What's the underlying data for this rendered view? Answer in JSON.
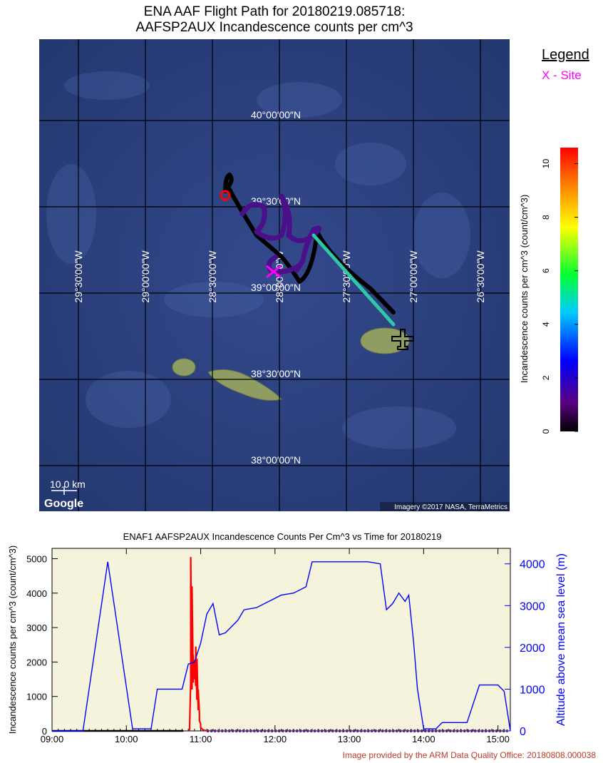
{
  "map": {
    "title_line1": "ENA AAF Flight Path for 20180219.085718:",
    "title_line2": "AAFSP2AUX Incandescence counts per cm^3",
    "legend_heading": "Legend",
    "legend_site": "X - Site",
    "lat_labels": [
      "40°00′00″N",
      "39°30′00″N",
      "39°00′00″N",
      "38°30′00″N",
      "38°00′00″N"
    ],
    "lon_labels": [
      "29°30′00″W",
      "29°00′00″W",
      "28°30′00″W",
      "28°00′00″W",
      "27°30′00″W",
      "27°00′00″W",
      "26°30′00″W"
    ],
    "scale_label": "10.0 km",
    "google_label": "Google",
    "imagery_label": "Imagery ©2017 NASA, TerraMetrics",
    "colorbar_label": "Incandescence counts per cm^3  (count/cm^3)",
    "colorbar_ticks": [
      "0",
      "2",
      "4",
      "6",
      "8",
      "10"
    ],
    "colors": {
      "ocean": "#2b3f7a",
      "land": "#8f9d63",
      "site": "#ff00ff",
      "grid": "#000000",
      "track": "#000000"
    }
  },
  "chart_data": {
    "type": "line",
    "title": "ENAF1 AAFSP2AUX Incandescence Counts Per Cm^3 vs Time for 20180219",
    "xlabel": "",
    "ylabel": "Incandescence counts per cm^3 (count/cm^3)",
    "y2label": "Altitude above mean sea level (m)",
    "x_ticks": [
      "09:00",
      "10:00",
      "11:00",
      "12:00",
      "13:00",
      "14:00",
      "15:00"
    ],
    "y_ticks": [
      "0",
      "1000",
      "2000",
      "3000",
      "4000",
      "5000"
    ],
    "y2_ticks": [
      "0",
      "1000",
      "2000",
      "3000",
      "4000"
    ],
    "xlim": [
      "09:00",
      "15:10"
    ],
    "ylim": [
      0,
      5300
    ],
    "y2lim": [
      0,
      4200
    ],
    "background": "#f5f3dc",
    "series": [
      {
        "name": "Incandescence counts",
        "axis": "left",
        "color": "#ff0000",
        "x": [
          "10:51",
          "10:52",
          "10:52",
          "10:53",
          "10:53",
          "10:54",
          "10:54",
          "10:55",
          "10:55",
          "10:56",
          "10:56",
          "10:57",
          "10:57",
          "10:58",
          "10:58",
          "10:59",
          "10:59",
          "11:00",
          "11:00",
          "11:01",
          "11:02",
          "11:05"
        ],
        "y": [
          0,
          1500,
          5050,
          1200,
          4200,
          1400,
          2200,
          1500,
          2050,
          1300,
          2450,
          900,
          2100,
          600,
          1200,
          500,
          300,
          200,
          100,
          60,
          30,
          0
        ]
      },
      {
        "name": "Altitude",
        "axis": "right",
        "color": "#0000ff",
        "x": [
          "09:00",
          "09:25",
          "09:45",
          "10:05",
          "10:20",
          "10:25",
          "10:45",
          "10:50",
          "10:55",
          "11:00",
          "11:05",
          "11:10",
          "11:15",
          "11:20",
          "11:25",
          "11:30",
          "11:35",
          "11:45",
          "11:55",
          "12:05",
          "12:15",
          "12:25",
          "12:30",
          "12:35",
          "12:45",
          "12:55",
          "13:05",
          "13:15",
          "13:25",
          "13:30",
          "13:35",
          "13:40",
          "13:45",
          "13:48",
          "13:52",
          "13:55",
          "14:00",
          "14:10",
          "14:15",
          "14:25",
          "14:35",
          "14:45",
          "14:50",
          "15:00",
          "15:05",
          "15:10"
        ],
        "y": [
          0,
          0,
          4050,
          50,
          50,
          1000,
          1000,
          1600,
          1650,
          2100,
          2800,
          3050,
          2300,
          2350,
          2500,
          2650,
          2900,
          2950,
          3100,
          3250,
          3300,
          3450,
          4050,
          4050,
          4050,
          4050,
          4050,
          4050,
          4000,
          2900,
          3050,
          3300,
          3100,
          3250,
          2100,
          1000,
          50,
          50,
          200,
          200,
          200,
          1100,
          1100,
          1100,
          950,
          0
        ]
      }
    ]
  },
  "credit": "Image provided by the ARM Data Quality Office: 20180808.000038"
}
